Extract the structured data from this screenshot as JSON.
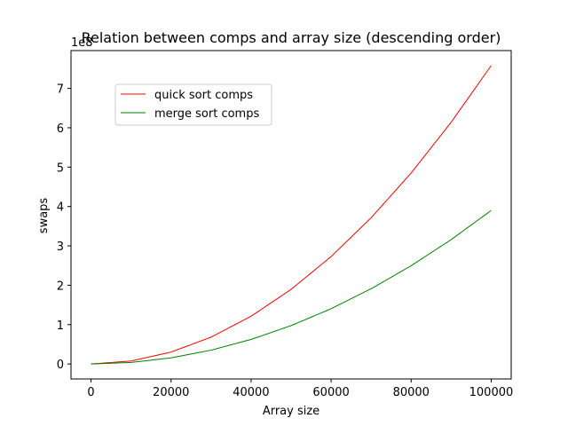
{
  "chart_data": {
    "type": "line",
    "title": "Relation between comps and array size (descending order)",
    "xlabel": "Array size",
    "ylabel": "swaps",
    "offset_text": "1e8",
    "xlim": [
      -5000,
      105000
    ],
    "ylim": [
      -0.38,
      7.96
    ],
    "xticks": [
      0,
      20000,
      40000,
      60000,
      80000,
      100000
    ],
    "yticks": [
      0,
      1,
      2,
      3,
      4,
      5,
      6,
      7
    ],
    "grid": false,
    "legend_position": "upper-left",
    "x": [
      0,
      10000,
      20000,
      30000,
      40000,
      50000,
      60000,
      70000,
      80000,
      90000,
      100000
    ],
    "series": [
      {
        "name": "quick sort comps",
        "color": "#ff0000",
        "values": [
          0,
          0.0758,
          0.303,
          0.682,
          1.213,
          1.895,
          2.729,
          3.714,
          4.851,
          6.14,
          7.58
        ]
      },
      {
        "name": "merge sort comps",
        "color": "#008000",
        "values": [
          0,
          0.039,
          0.156,
          0.351,
          0.624,
          0.975,
          1.404,
          1.911,
          2.496,
          3.159,
          3.9
        ]
      }
    ]
  }
}
